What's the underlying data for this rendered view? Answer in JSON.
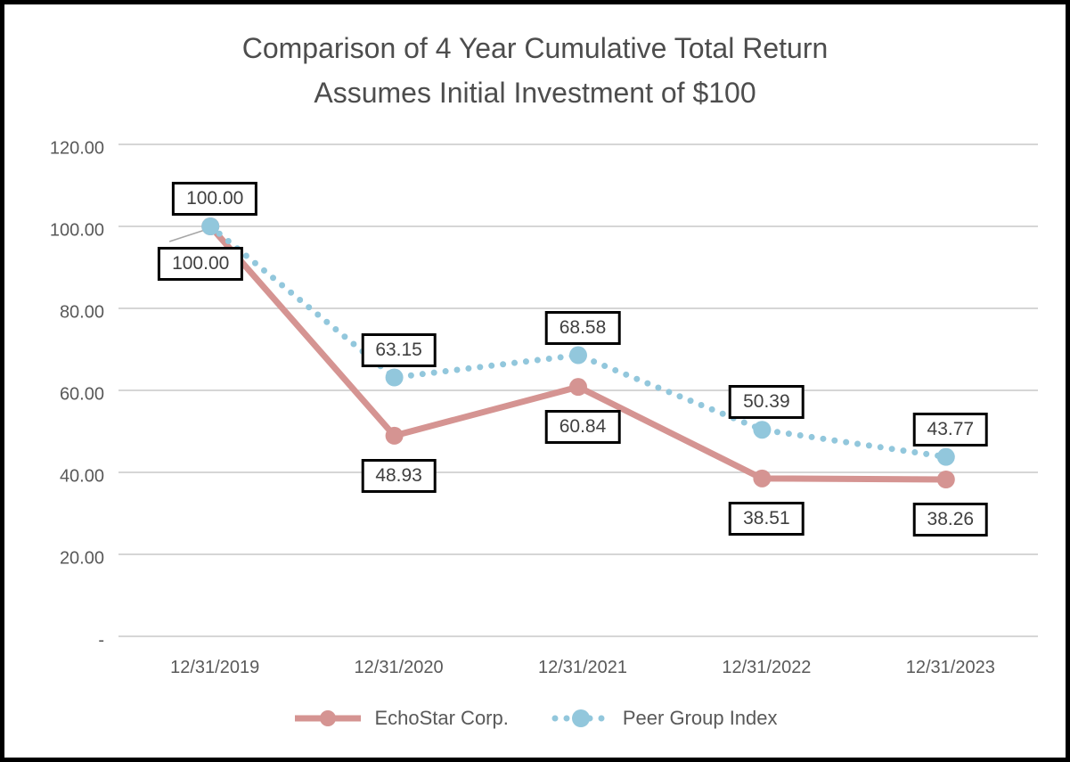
{
  "title": {
    "line1": "Comparison of 4 Year Cumulative Total Return",
    "line2": "Assumes Initial Investment of $100"
  },
  "chart_data": {
    "type": "line",
    "categories": [
      "12/31/2019",
      "12/31/2020",
      "12/31/2021",
      "12/31/2022",
      "12/31/2023"
    ],
    "series": [
      {
        "name": "EchoStar Corp.",
        "values": [
          100.0,
          48.93,
          60.84,
          38.51,
          38.26
        ],
        "labels": [
          "100.00",
          "48.93",
          "60.84",
          "38.51",
          "38.26"
        ],
        "color": "#d59492",
        "line_style": "solid",
        "marker": "circle",
        "label_position": "below"
      },
      {
        "name": "Peer Group Index",
        "values": [
          100.0,
          63.15,
          68.58,
          50.39,
          43.77
        ],
        "labels": [
          "100.00",
          "63.15",
          "68.58",
          "50.39",
          "43.77"
        ],
        "color": "#92c7dc",
        "line_style": "dotted",
        "marker": "circle",
        "label_position": "above"
      }
    ],
    "title": "Comparison of 4 Year Cumulative Total Return — Assumes Initial Investment of $100",
    "xlabel": "",
    "ylabel": "",
    "ylim": [
      0,
      120
    ],
    "ytick_interval": 20,
    "ytick_labels": [
      "-",
      "20.00",
      "40.00",
      "60.00",
      "80.00",
      "100.00",
      "120.00"
    ],
    "grid": true,
    "legend_position": "bottom",
    "colors": {
      "gridline": "#d6d6d6",
      "axis_text": "#595959",
      "title_text": "#4d4d4d",
      "data_label_text": "#3f3f3f",
      "data_label_border": "#000000",
      "leader_line": "#a6a6a6",
      "frame_border": "#000000",
      "background": "#ffffff"
    }
  }
}
